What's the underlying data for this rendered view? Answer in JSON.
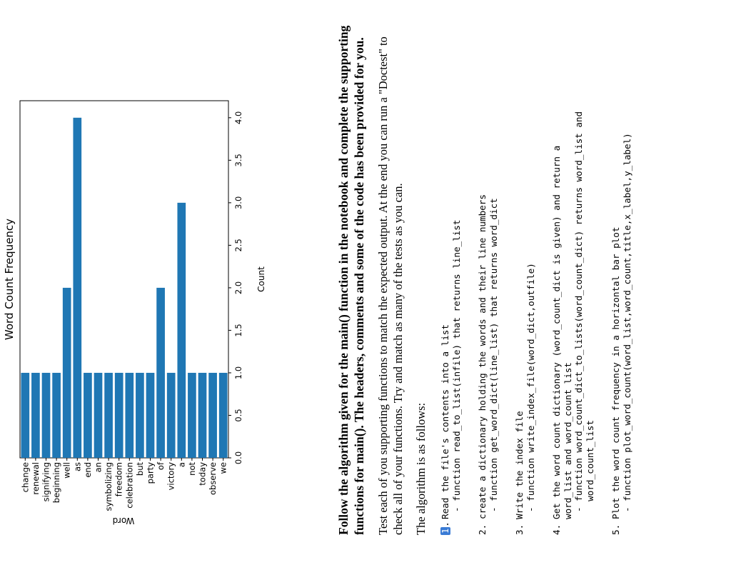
{
  "chart_data": {
    "type": "bar",
    "orientation": "horizontal",
    "title": "Word Count Frequency",
    "xlabel": "Count",
    "ylabel": "Word",
    "categories": [
      "change",
      "renewal",
      "signifying",
      "beginning",
      "well",
      "as",
      "end",
      "an",
      "symbolizing",
      "freedom",
      "celebration",
      "but",
      "party",
      "of",
      "victory",
      "a",
      "not",
      "today",
      "observe",
      "we"
    ],
    "values": [
      1,
      1,
      1,
      1,
      2,
      4,
      1,
      1,
      1,
      1,
      1,
      1,
      1,
      2,
      1,
      3,
      1,
      1,
      1,
      1
    ],
    "xlim": [
      0,
      4.2
    ],
    "xticks": [
      "0.0",
      "0.5",
      "1.0",
      "1.5",
      "2.0",
      "2.5",
      "3.0",
      "3.5",
      "4.0"
    ],
    "bar_color": "#1f77b4",
    "grid": false
  },
  "intro": {
    "bold": "Follow the algorithm given for the main() function in the notebook and complete the supporting functions for main(). The headers, comments and some of the code has been provided for you.",
    "test": "Test each of you supporting functions to match the expected output. At the end you can run a \"Doctest\" to check all of your functions. Try and match as many of the tests as you can.",
    "algo": "The algorithm is as follows:"
  },
  "steps": [
    {
      "num": "1.",
      "lines": [
        "Read the file's contents into a list"
      ],
      "sub": [
        "- function read_to_list(infile) that returns line_list"
      ]
    },
    {
      "num": "2.",
      "lines": [
        "create a dictionary holding the words and their line numbers"
      ],
      "sub": [
        "- function get_word_dict(line_list) that returns word_dict"
      ]
    },
    {
      "num": "3.",
      "lines": [
        "Write the index file"
      ],
      "sub": [
        "- function write_index_file(word_dict,outfile)"
      ]
    },
    {
      "num": "4.",
      "lines": [
        "Get the word count dictionary (word_count_dict is given) and return a",
        "word_list and word_count list"
      ],
      "sub": [
        "- function word_count_dict_to_lists(word_count_dict) returns word_list and",
        "  word_count_list"
      ]
    },
    {
      "num": "5.",
      "lines": [
        "Plot the word count frequency in a horizontal bar plot"
      ],
      "sub": [
        "- function plot_word_count(word_list,word_count,title,x_label,y_label)"
      ]
    }
  ]
}
